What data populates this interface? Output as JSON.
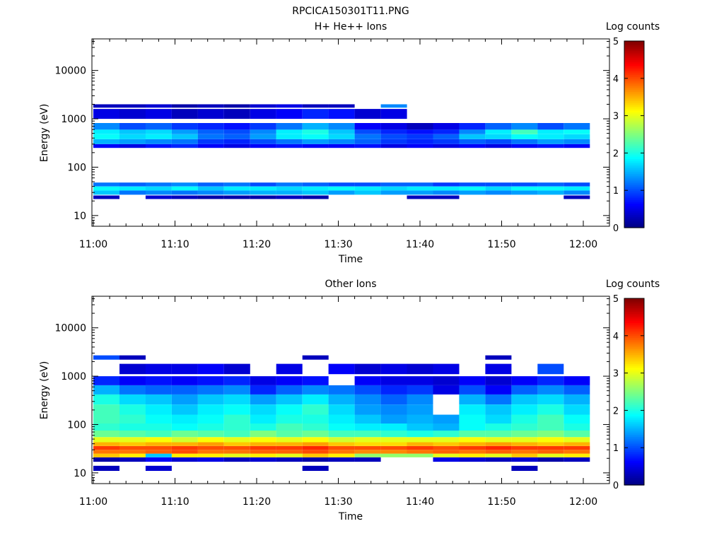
{
  "figure": {
    "title": "RPCICA150301T11.PNG"
  },
  "colormap": [
    "#00007f",
    "#0000ff",
    "#007fff",
    "#00ffff",
    "#7fff7f",
    "#ffff00",
    "#ff7f00",
    "#ff0000",
    "#7f0000"
  ],
  "chart_data": [
    {
      "type": "heatmap",
      "title": "H+ He++ Ions",
      "xlabel": "Time",
      "ylabel": "Energy (eV)",
      "y_scale": "log",
      "ylim": [
        6,
        45000
      ],
      "x_ticks": [
        "11:00",
        "11:10",
        "11:20",
        "11:30",
        "11:40",
        "11:50",
        "12:00"
      ],
      "y_ticks": [
        "10",
        "100",
        "1000",
        "10000"
      ],
      "colorbar": {
        "label": "Log counts",
        "range": [
          0,
          5
        ],
        "ticks": [
          "0",
          "1",
          "2",
          "3",
          "4",
          "5"
        ]
      },
      "time_bins": [
        "11:01:36",
        "11:04:48",
        "11:08:00",
        "11:11:12",
        "11:14:24",
        "11:17:36",
        "11:20:48",
        "11:24:00",
        "11:27:12",
        "11:30:24",
        "11:33:36",
        "11:36:48",
        "11:40:00",
        "11:43:12",
        "11:46:24",
        "11:49:36",
        "11:52:48",
        "11:56:00",
        "11:59:12"
      ],
      "bands": [
        {
          "e_lo": 22,
          "e_hi": 26,
          "values": [
            0.3,
            null,
            0.4,
            0.3,
            0.2,
            0.2,
            0.2,
            0.3,
            0.2,
            null,
            null,
            null,
            0.3,
            0.3,
            null,
            null,
            null,
            null,
            0.3
          ]
        },
        {
          "e_lo": 27,
          "e_hi": 33,
          "values": [
            1.6,
            1.2,
            1.3,
            1.2,
            1.3,
            1.4,
            1.5,
            1.5,
            1.6,
            1.4,
            1.6,
            1.4,
            1.4,
            1.3,
            1.4,
            1.3,
            1.4,
            1.5,
            1.3
          ]
        },
        {
          "e_lo": 33,
          "e_hi": 40,
          "values": [
            1.9,
            1.8,
            1.7,
            1.9,
            1.6,
            1.8,
            1.8,
            1.7,
            1.8,
            1.9,
            1.8,
            1.7,
            1.8,
            1.8,
            1.9,
            1.7,
            1.9,
            1.9,
            1.8
          ]
        },
        {
          "e_lo": 40,
          "e_hi": 48,
          "values": [
            1.2,
            1.1,
            1.2,
            1.3,
            1.1,
            1.2,
            1.0,
            1.2,
            1.1,
            1.0,
            1.0,
            1.1,
            1.1,
            0.9,
            1.0,
            1.0,
            1.0,
            1.1,
            1.0
          ]
        },
        {
          "e_lo": 250,
          "e_hi": 300,
          "values": [
            0.6,
            0.5,
            0.7,
            0.8,
            0.6,
            0.5,
            0.6,
            0.7,
            0.6,
            0.6,
            0.7,
            0.5,
            0.6,
            0.5,
            0.6,
            0.5,
            0.6,
            0.7,
            0.6
          ]
        },
        {
          "e_lo": 300,
          "e_hi": 380,
          "values": [
            1.5,
            1.4,
            1.3,
            1.2,
            0.9,
            0.8,
            1.0,
            1.2,
            1.4,
            1.3,
            1.1,
            0.9,
            0.8,
            0.9,
            1.1,
            1.0,
            1.2,
            1.4,
            1.3
          ]
        },
        {
          "e_lo": 380,
          "e_hi": 480,
          "values": [
            1.9,
            1.7,
            1.8,
            1.6,
            1.2,
            1.1,
            1.4,
            1.8,
            1.9,
            1.7,
            1.2,
            1.0,
            0.9,
            1.1,
            1.6,
            1.7,
            1.9,
            1.8,
            1.7
          ]
        },
        {
          "e_lo": 480,
          "e_hi": 600,
          "values": [
            1.8,
            1.6,
            1.7,
            1.4,
            1.1,
            1.0,
            1.3,
            1.8,
            2.0,
            1.6,
            1.0,
            0.8,
            0.7,
            0.8,
            1.3,
            1.8,
            2.2,
            1.8,
            1.9
          ]
        },
        {
          "e_lo": 600,
          "e_hi": 820,
          "values": [
            1.3,
            1.0,
            1.1,
            0.9,
            0.8,
            0.7,
            0.9,
            1.2,
            1.5,
            1.3,
            0.6,
            0.5,
            0.3,
            0.5,
            0.8,
            1.1,
            1.3,
            1.0,
            1.2
          ]
        },
        {
          "e_lo": 1000,
          "e_hi": 1600,
          "values": [
            0.5,
            0.4,
            0.5,
            0.3,
            0.4,
            0.3,
            0.5,
            0.6,
            0.8,
            0.7,
            0.4,
            0.5,
            null,
            null,
            null,
            null,
            null,
            null,
            null
          ]
        },
        {
          "e_lo": 1700,
          "e_hi": 2000,
          "values": [
            0.3,
            0.3,
            0.4,
            0.2,
            0.3,
            0.2,
            0.4,
            0.5,
            0.3,
            0.3,
            null,
            1.3,
            null,
            null,
            null,
            null,
            null,
            null,
            null
          ]
        }
      ]
    },
    {
      "type": "heatmap",
      "title": "Other Ions",
      "xlabel": "Time",
      "ylabel": "Energy (eV)",
      "y_scale": "log",
      "ylim": [
        6,
        45000
      ],
      "x_ticks": [
        "11:00",
        "11:10",
        "11:20",
        "11:30",
        "11:40",
        "11:50",
        "12:00"
      ],
      "y_ticks": [
        "10",
        "100",
        "1000",
        "10000"
      ],
      "colorbar": {
        "label": "Log counts",
        "range": [
          0,
          5
        ],
        "ticks": [
          "0",
          "1",
          "2",
          "3",
          "4",
          "5"
        ]
      },
      "time_bins": [
        "11:01:36",
        "11:04:48",
        "11:08:00",
        "11:11:12",
        "11:14:24",
        "11:17:36",
        "11:20:48",
        "11:24:00",
        "11:27:12",
        "11:30:24",
        "11:33:36",
        "11:36:48",
        "11:40:00",
        "11:43:12",
        "11:46:24",
        "11:49:36",
        "11:52:48",
        "11:56:00",
        "11:59:12"
      ],
      "bands": [
        {
          "e_lo": 11,
          "e_hi": 14,
          "values": [
            0.3,
            null,
            0.4,
            null,
            null,
            null,
            null,
            null,
            0.3,
            null,
            null,
            null,
            null,
            null,
            null,
            null,
            0.3,
            null,
            null
          ]
        },
        {
          "e_lo": 17,
          "e_hi": 21,
          "values": [
            0.2,
            0.3,
            0.6,
            0.4,
            0.5,
            0.3,
            0.4,
            0.3,
            0.2,
            0.3,
            0.3,
            null,
            null,
            0.5,
            0.4,
            0.3,
            0.4,
            0.2,
            0.3
          ]
        },
        {
          "e_lo": 21,
          "e_hi": 25,
          "values": [
            3.4,
            3.2,
            1.6,
            3.2,
            3.2,
            3.0,
            3.2,
            3.0,
            3.4,
            3.2,
            2.6,
            2.6,
            2.6,
            3.0,
            3.2,
            3.0,
            3.4,
            3.0,
            3.2
          ]
        },
        {
          "e_lo": 25,
          "e_hi": 30,
          "values": [
            3.8,
            3.8,
            3.9,
            4.0,
            3.8,
            3.8,
            3.9,
            3.9,
            4.0,
            3.8,
            3.7,
            3.7,
            3.8,
            3.9,
            3.8,
            3.9,
            3.8,
            3.9,
            3.8
          ]
        },
        {
          "e_lo": 30,
          "e_hi": 36,
          "values": [
            4.1,
            4.0,
            4.0,
            4.1,
            4.0,
            4.0,
            4.1,
            4.1,
            4.2,
            4.0,
            4.0,
            4.0,
            4.1,
            4.0,
            4.1,
            4.2,
            4.1,
            4.1,
            4.1
          ]
        },
        {
          "e_lo": 36,
          "e_hi": 43,
          "values": [
            3.5,
            3.4,
            3.5,
            3.5,
            3.6,
            3.4,
            3.5,
            3.5,
            3.6,
            3.4,
            3.3,
            3.3,
            3.5,
            3.4,
            3.5,
            3.6,
            3.5,
            3.4,
            3.5
          ]
        },
        {
          "e_lo": 43,
          "e_hi": 55,
          "values": [
            3.0,
            3.0,
            3.1,
            2.9,
            3.1,
            3.0,
            3.1,
            3.0,
            3.1,
            2.9,
            3.0,
            3.0,
            3.0,
            3.0,
            3.1,
            3.0,
            3.0,
            3.1,
            3.0
          ]
        },
        {
          "e_lo": 55,
          "e_hi": 75,
          "values": [
            2.4,
            2.3,
            2.2,
            2.4,
            2.3,
            2.2,
            2.5,
            2.3,
            2.4,
            2.2,
            2.2,
            2.1,
            2.0,
            2.1,
            2.3,
            2.3,
            2.4,
            2.5,
            2.3
          ]
        },
        {
          "e_lo": 75,
          "e_hi": 105,
          "values": [
            2.1,
            2.0,
            2.0,
            1.9,
            2.0,
            2.1,
            2.0,
            2.2,
            2.1,
            1.9,
            1.8,
            1.8,
            1.6,
            1.5,
            1.9,
            2.0,
            2.1,
            2.2,
            2.0
          ]
        },
        {
          "e_lo": 105,
          "e_hi": 160,
          "values": [
            2.2,
            2.1,
            1.9,
            1.8,
            1.9,
            2.1,
            1.8,
            2.0,
            2.0,
            1.8,
            1.6,
            1.4,
            1.5,
            1.4,
            1.9,
            1.7,
            2.0,
            2.2,
            1.9
          ]
        },
        {
          "e_lo": 160,
          "e_hi": 260,
          "values": [
            2.2,
            2.0,
            1.8,
            1.6,
            1.8,
            1.9,
            1.7,
            1.9,
            2.1,
            1.7,
            1.4,
            1.3,
            1.4,
            null,
            1.8,
            1.6,
            1.8,
            2.0,
            1.7
          ]
        },
        {
          "e_lo": 260,
          "e_hi": 420,
          "values": [
            2.0,
            1.7,
            1.6,
            1.4,
            1.6,
            1.7,
            1.4,
            1.6,
            1.8,
            1.5,
            1.3,
            1.1,
            1.3,
            null,
            1.5,
            1.2,
            1.6,
            1.7,
            1.5
          ]
        },
        {
          "e_lo": 420,
          "e_hi": 650,
          "values": [
            1.5,
            1.2,
            1.1,
            1.1,
            1.2,
            1.3,
            0.8,
            1.1,
            1.3,
            1.2,
            1.0,
            0.8,
            0.9,
            0.5,
            1.0,
            0.6,
            1.1,
            1.3,
            1.1
          ]
        },
        {
          "e_lo": 650,
          "e_hi": 1000,
          "values": [
            0.8,
            0.6,
            0.7,
            0.6,
            0.7,
            0.8,
            0.5,
            0.6,
            0.7,
            null,
            0.6,
            0.5,
            0.5,
            0.4,
            0.6,
            0.4,
            0.6,
            0.8,
            0.6
          ]
        },
        {
          "e_lo": 1100,
          "e_hi": 1800,
          "values": [
            null,
            0.4,
            0.5,
            0.5,
            0.6,
            0.4,
            null,
            0.5,
            null,
            0.6,
            0.4,
            0.5,
            0.4,
            0.5,
            null,
            0.5,
            null,
            1.0,
            null
          ]
        },
        {
          "e_lo": 2200,
          "e_hi": 2700,
          "values": [
            1.0,
            0.3,
            null,
            null,
            null,
            null,
            null,
            null,
            0.3,
            null,
            null,
            null,
            null,
            null,
            null,
            0.3,
            null,
            null,
            null
          ]
        }
      ]
    }
  ]
}
